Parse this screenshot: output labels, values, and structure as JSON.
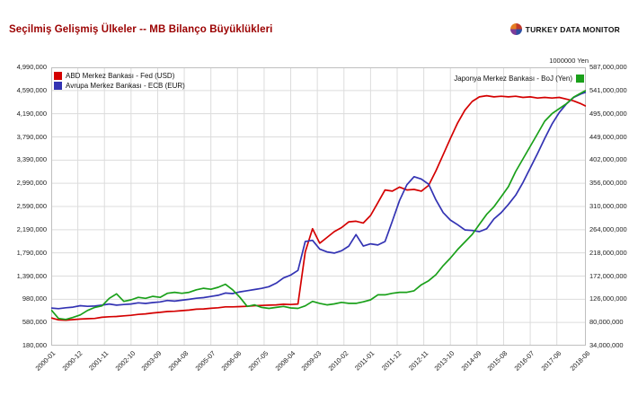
{
  "header": {
    "title": "Seçilmiş Gelişmiş Ülkeler -- MB Bilanço Büyüklükleri",
    "title_color": "#9b0000",
    "logo_text": "TURKEY DATA MONITOR",
    "logo_colors": [
      "#c0392b",
      "#2e4fa3",
      "#7d3c98",
      "#e67e22"
    ]
  },
  "right_axis_unit": "1000000 Yen",
  "legend_left": [
    {
      "label": "ABD Merkez Bankası - Fed (USD)",
      "color": "#d40000"
    },
    {
      "label": "Avrupa Merkez Bankası - ECB (EUR)",
      "color": "#3333b3"
    }
  ],
  "legend_right": [
    {
      "label": "Japonya Merkez Bankası - BoJ (Yen)",
      "color": "#1aa01a"
    }
  ],
  "chart_data": {
    "type": "line",
    "title": "Seçilmiş Gelişmiş Ülkeler -- MB Bilanço Büyüklükleri",
    "grid": true,
    "x_tick_labels": [
      "2000-01",
      "2000-12",
      "2001-11",
      "2002-10",
      "2003-09",
      "2004-08",
      "2005-07",
      "2006-06",
      "2007-05",
      "2008-04",
      "2009-03",
      "2010-02",
      "2011-01",
      "2011-12",
      "2012-11",
      "2013-10",
      "2014-09",
      "2015-08",
      "2016-07",
      "2017-06",
      "2018-06"
    ],
    "left_axis": {
      "tick_labels": [
        "4,990,000",
        "4,590,000",
        "4,190,000",
        "3,790,000",
        "3,390,000",
        "2,990,000",
        "2,590,000",
        "2,190,000",
        "1,790,000",
        "1,390,000",
        "980,000",
        "580,000",
        "180,000"
      ],
      "min": 180000,
      "max": 4990000
    },
    "right_axis": {
      "unit": "1000000 Yen",
      "tick_labels": [
        "587,000,000",
        "541,000,000",
        "495,000,000",
        "449,000,000",
        "402,000,000",
        "356,000,000",
        "310,000,000",
        "264,000,000",
        "218,000,000",
        "172,000,000",
        "126,000,000",
        "80,000,000",
        "34,000,000"
      ],
      "min": 34000000,
      "max": 587000000
    },
    "months": [
      "2000-01",
      "2000-04",
      "2000-07",
      "2000-10",
      "2001-01",
      "2001-04",
      "2001-07",
      "2001-10",
      "2002-01",
      "2002-04",
      "2002-07",
      "2002-10",
      "2003-01",
      "2003-04",
      "2003-07",
      "2003-10",
      "2004-01",
      "2004-04",
      "2004-07",
      "2004-10",
      "2005-01",
      "2005-04",
      "2005-07",
      "2005-10",
      "2006-01",
      "2006-04",
      "2006-07",
      "2006-10",
      "2007-01",
      "2007-04",
      "2007-07",
      "2007-10",
      "2008-01",
      "2008-04",
      "2008-07",
      "2008-10",
      "2009-01",
      "2009-04",
      "2009-07",
      "2009-10",
      "2010-01",
      "2010-04",
      "2010-07",
      "2010-10",
      "2011-01",
      "2011-04",
      "2011-07",
      "2011-10",
      "2012-01",
      "2012-04",
      "2012-07",
      "2012-10",
      "2013-01",
      "2013-04",
      "2013-07",
      "2013-10",
      "2014-01",
      "2014-04",
      "2014-07",
      "2014-10",
      "2015-01",
      "2015-04",
      "2015-07",
      "2015-10",
      "2016-01",
      "2016-04",
      "2016-07",
      "2016-10",
      "2017-01",
      "2017-04",
      "2017-07",
      "2017-10",
      "2018-01",
      "2018-04",
      "2018-06"
    ],
    "series": [
      {
        "name": "ABD Merkez Bankası - Fed (USD)",
        "axis": "left",
        "color": "#d40000",
        "values": [
          660000,
          625000,
          620000,
          630000,
          640000,
          645000,
          650000,
          670000,
          680000,
          685000,
          695000,
          705000,
          720000,
          730000,
          745000,
          755000,
          770000,
          775000,
          785000,
          795000,
          810000,
          815000,
          825000,
          835000,
          850000,
          850000,
          855000,
          860000,
          870000,
          875000,
          880000,
          885000,
          895000,
          890000,
          900000,
          1800000,
          2200000,
          1950000,
          2050000,
          2150000,
          2220000,
          2320000,
          2330000,
          2300000,
          2430000,
          2650000,
          2870000,
          2850000,
          2920000,
          2870000,
          2880000,
          2850000,
          2950000,
          3200000,
          3480000,
          3760000,
          4030000,
          4250000,
          4400000,
          4480000,
          4500000,
          4480000,
          4490000,
          4480000,
          4490000,
          4470000,
          4480000,
          4460000,
          4470000,
          4460000,
          4470000,
          4440000,
          4410000,
          4360000,
          4320000
        ]
      },
      {
        "name": "Avrupa Merkez Bankası - ECB (EUR)",
        "axis": "left",
        "color": "#3333b3",
        "values": [
          830000,
          820000,
          835000,
          845000,
          870000,
          860000,
          865000,
          880000,
          900000,
          880000,
          890000,
          900000,
          920000,
          910000,
          925000,
          935000,
          960000,
          950000,
          965000,
          980000,
          1000000,
          1010000,
          1030000,
          1050000,
          1090000,
          1080000,
          1110000,
          1130000,
          1150000,
          1170000,
          1200000,
          1260000,
          1350000,
          1400000,
          1480000,
          1980000,
          2000000,
          1850000,
          1800000,
          1780000,
          1820000,
          1900000,
          2100000,
          1900000,
          1940000,
          1920000,
          1980000,
          2330000,
          2690000,
          2960000,
          3100000,
          3060000,
          2970000,
          2700000,
          2480000,
          2350000,
          2270000,
          2180000,
          2170000,
          2150000,
          2200000,
          2370000,
          2480000,
          2620000,
          2780000,
          3000000,
          3250000,
          3500000,
          3760000,
          4010000,
          4210000,
          4360000,
          4470000,
          4530000,
          4560000
        ]
      },
      {
        "name": "Japonya Merkez Bankası - BoJ (Yen)",
        "axis": "right",
        "color": "#1aa01a",
        "values": [
          105000000,
          88000000,
          86000000,
          90000000,
          95000000,
          104000000,
          110000000,
          113000000,
          128000000,
          137000000,
          122000000,
          125000000,
          130000000,
          128000000,
          132000000,
          130000000,
          138000000,
          140000000,
          138000000,
          140000000,
          145000000,
          148000000,
          146000000,
          150000000,
          156000000,
          145000000,
          130000000,
          112000000,
          115000000,
          110000000,
          108000000,
          110000000,
          112000000,
          109000000,
          108000000,
          113000000,
          122000000,
          118000000,
          115000000,
          117000000,
          120000000,
          118000000,
          118000000,
          121000000,
          125000000,
          135000000,
          135000000,
          138000000,
          140000000,
          140000000,
          143000000,
          155000000,
          163000000,
          175000000,
          193000000,
          208000000,
          225000000,
          240000000,
          255000000,
          275000000,
          295000000,
          310000000,
          330000000,
          350000000,
          380000000,
          405000000,
          430000000,
          455000000,
          480000000,
          495000000,
          505000000,
          515000000,
          528000000,
          536000000,
          541000000
        ]
      }
    ],
    "colors": {
      "grid": "#dcdcdc",
      "plot_border": "#bfbfbf",
      "axis_text": "#222222"
    }
  }
}
